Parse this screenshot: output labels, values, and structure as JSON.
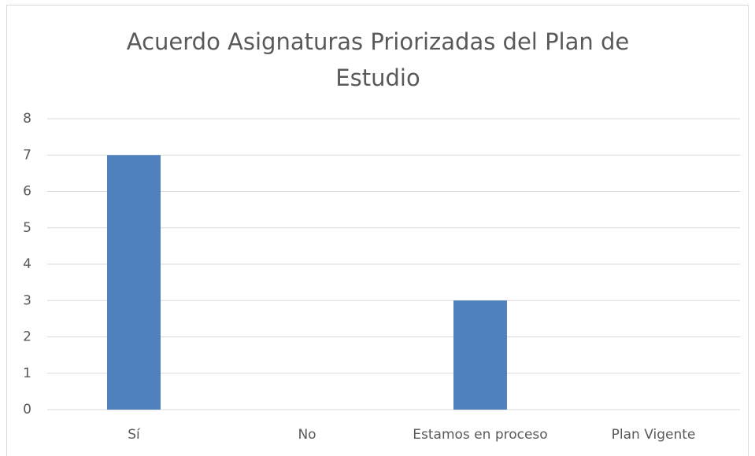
{
  "chart_data": {
    "type": "bar",
    "title": "Acuerdo Asignaturas Priorizadas del Plan de Estudio",
    "categories": [
      "Sí",
      "No",
      "Estamos en proceso",
      "Plan Vigente"
    ],
    "values": [
      7,
      0,
      3,
      0
    ],
    "color": "#4f81bd",
    "ylim": [
      0,
      8
    ],
    "yticks": [
      0,
      1,
      2,
      3,
      4,
      5,
      6,
      7,
      8
    ],
    "grid": true
  }
}
